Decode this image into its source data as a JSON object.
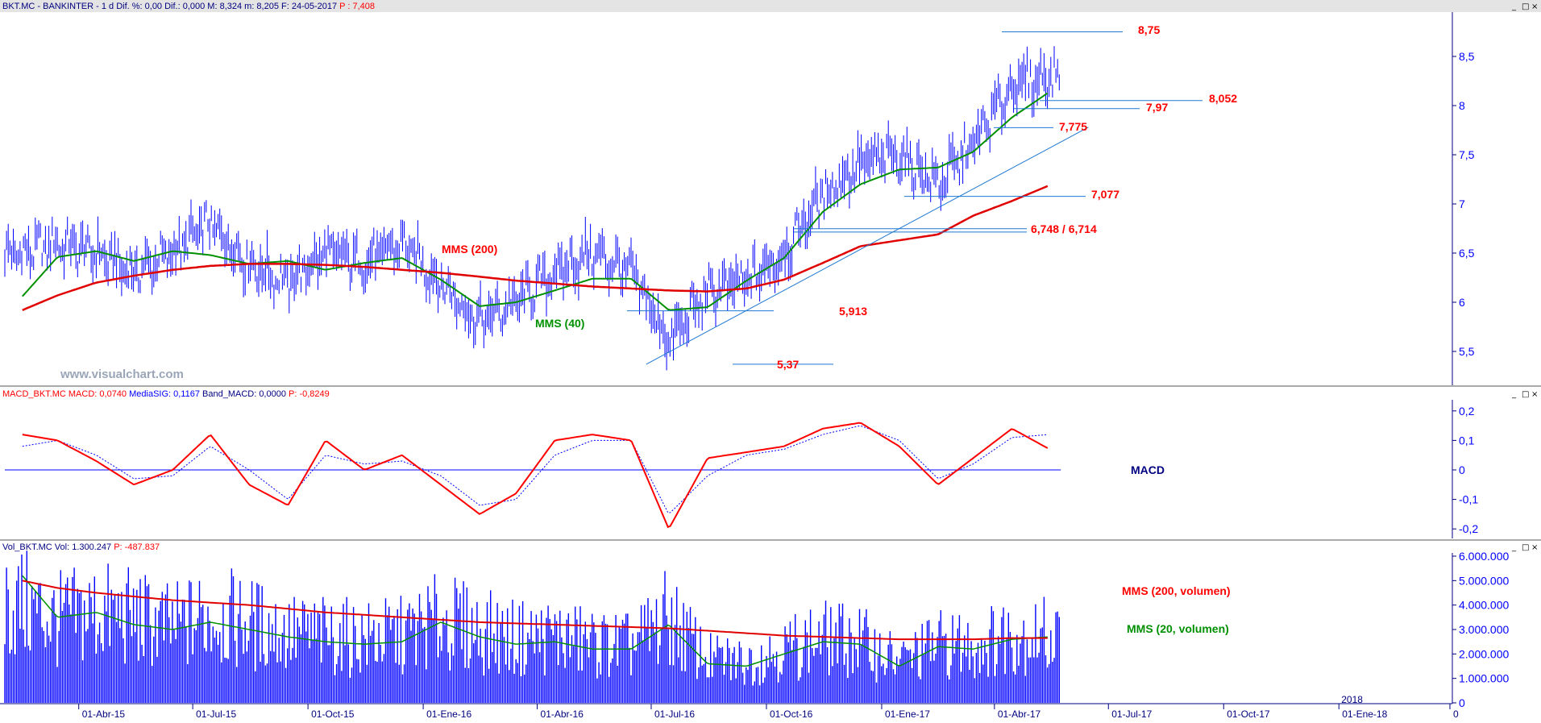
{
  "panels": {
    "price": {
      "header_parts": [
        {
          "text": "BKT.MC - BANKINTER - 1 d  Dif. %: 0,00  Dif.: 0,000  M: 8,324  m: 8,205  F: 24-05-2017",
          "color": "#000080"
        },
        {
          "text": "P : 7,408",
          "color": "#ff0000"
        }
      ],
      "y_ticks": [
        "8,5",
        "8",
        "7,5",
        "7",
        "6,5",
        "6",
        "5,5"
      ],
      "watermark": "www.visualchart.com"
    },
    "macd": {
      "header_parts": [
        {
          "text": "MACD_BKT.MC  MACD: 0,0740",
          "color": "#ff0000"
        },
        {
          "text": "MediaSIG: 0,1167",
          "color": "#0000ff"
        },
        {
          "text": "Band_MACD: 0,0000",
          "color": "#000080"
        },
        {
          "text": "P: -0,8249",
          "color": "#ff0000"
        }
      ],
      "y_ticks": [
        "0,2",
        "0,1",
        "0",
        "-0,1",
        "-0,2"
      ],
      "label": "MACD"
    },
    "volume": {
      "header_parts": [
        {
          "text": "Vol_BKT.MC  Vol: 1.300.247",
          "color": "#000080"
        },
        {
          "text": "P: -487.837",
          "color": "#ff0000"
        }
      ],
      "y_ticks": [
        "6.000.000",
        "5.000.000",
        "4.000.000",
        "3.000.000",
        "2.000.000",
        "1.000.000",
        "0"
      ]
    }
  },
  "x_ticks": [
    "01-Abr-15",
    "01-Jul-15",
    "01-Oct-15",
    "01-Ene-16",
    "01-Abr-16",
    "01-Jul-16",
    "01-Oct-16",
    "01-Ene-17",
    "01-Abr-17",
    "01-Jul-17",
    "01-Oct-17",
    "01-Ene-18",
    "0"
  ],
  "x_year_marker": "2018",
  "window_buttons": [
    "_",
    "□",
    "×"
  ],
  "annotations": {
    "levels": [
      "8,75",
      "8,052",
      "7,97",
      "7,775",
      "7,077",
      "6,748 / 6,714",
      "5,913",
      "5,37"
    ],
    "mms200": "MMS (200)",
    "mms40": "MMS (40)",
    "vol200": "MMS (200, volumen)",
    "vol20": "MMS (20, volumen)"
  },
  "colors": {
    "price_bars": "#0000ff",
    "mms200": "#e00000",
    "mms40": "#009000",
    "support_lines": "#1e78d2",
    "macd_line": "#ff0000",
    "signal_line": "#0000ff",
    "volume_bars": "#0000ff",
    "axis_text": "#0000ff",
    "annotation_red": "#ff0000",
    "annotation_green": "#009000",
    "annotation_navy": "#000080"
  },
  "chart_data": [
    {
      "type": "line",
      "panel": "price",
      "series": [
        {
          "name": "BKT.MC",
          "x": [
            "2015-02",
            "2015-03",
            "2015-04",
            "2015-05",
            "2015-06",
            "2015-07",
            "2015-08",
            "2015-09",
            "2015-10",
            "2015-11",
            "2015-12",
            "2016-01",
            "2016-02",
            "2016-03",
            "2016-04",
            "2016-05",
            "2016-06",
            "2016-07",
            "2016-08",
            "2016-09",
            "2016-10",
            "2016-11",
            "2016-12",
            "2017-01",
            "2017-02",
            "2017-03",
            "2017-04",
            "2017-05"
          ],
          "values": [
            6.5,
            6.6,
            6.5,
            6.3,
            6.5,
            6.8,
            6.4,
            6.2,
            6.5,
            6.4,
            6.6,
            6.2,
            5.8,
            6.0,
            6.3,
            6.5,
            6.3,
            5.6,
            6.1,
            6.2,
            6.5,
            7.1,
            7.4,
            7.5,
            7.2,
            7.6,
            8.2,
            8.3
          ]
        },
        {
          "name": "MMS (40)",
          "x": [
            "2015-02",
            "2015-03",
            "2015-04",
            "2015-05",
            "2015-06",
            "2015-07",
            "2015-08",
            "2015-09",
            "2015-10",
            "2015-11",
            "2015-12",
            "2016-01",
            "2016-02",
            "2016-03",
            "2016-04",
            "2016-05",
            "2016-06",
            "2016-07",
            "2016-08",
            "2016-09",
            "2016-10",
            "2016-11",
            "2016-12",
            "2017-01",
            "2017-02",
            "2017-03",
            "2017-04",
            "2017-05"
          ],
          "values": [
            6.06,
            6.46,
            6.52,
            6.42,
            6.52,
            6.48,
            6.39,
            6.42,
            6.33,
            6.4,
            6.45,
            6.23,
            5.96,
            6.0,
            6.12,
            6.24,
            6.24,
            5.92,
            5.95,
            6.22,
            6.45,
            6.92,
            7.2,
            7.35,
            7.37,
            7.53,
            7.88,
            8.14
          ]
        },
        {
          "name": "MMS (200)",
          "x": [
            "2015-02",
            "2015-03",
            "2015-04",
            "2015-05",
            "2015-06",
            "2015-07",
            "2015-08",
            "2015-09",
            "2015-10",
            "2015-11",
            "2015-12",
            "2016-01",
            "2016-02",
            "2016-03",
            "2016-04",
            "2016-05",
            "2016-06",
            "2016-07",
            "2016-08",
            "2016-09",
            "2016-10",
            "2016-11",
            "2016-12",
            "2017-01",
            "2017-02",
            "2017-03",
            "2017-04",
            "2017-05"
          ],
          "values": [
            5.92,
            6.07,
            6.2,
            6.27,
            6.33,
            6.37,
            6.39,
            6.39,
            6.38,
            6.36,
            6.33,
            6.3,
            6.26,
            6.22,
            6.19,
            6.16,
            6.14,
            6.12,
            6.11,
            6.14,
            6.23,
            6.4,
            6.57,
            6.63,
            6.69,
            6.88,
            7.03,
            7.19
          ]
        }
      ],
      "levels": [
        8.75,
        8.052,
        7.97,
        7.775,
        7.077,
        6.748,
        6.714,
        5.913,
        5.37
      ],
      "trendline": {
        "from": [
          "2016-06-27",
          5.37
        ],
        "to": [
          "2017-06-15",
          7.78
        ]
      },
      "ylim": [
        5.2,
        8.95
      ]
    },
    {
      "type": "line",
      "panel": "macd",
      "series": [
        {
          "name": "MACD",
          "x": [
            "2015-02",
            "2015-03",
            "2015-04",
            "2015-05",
            "2015-06",
            "2015-07",
            "2015-08",
            "2015-09",
            "2015-10",
            "2015-11",
            "2015-12",
            "2016-01",
            "2016-02",
            "2016-03",
            "2016-04",
            "2016-05",
            "2016-06",
            "2016-07",
            "2016-08",
            "2016-09",
            "2016-10",
            "2016-11",
            "2016-12",
            "2017-01",
            "2017-02",
            "2017-03",
            "2017-04",
            "2017-05"
          ],
          "values": [
            0.12,
            0.1,
            0.03,
            -0.05,
            0.0,
            0.12,
            -0.05,
            -0.12,
            0.1,
            0.0,
            0.05,
            -0.05,
            -0.15,
            -0.08,
            0.1,
            0.12,
            0.1,
            -0.2,
            0.04,
            0.06,
            0.08,
            0.14,
            0.16,
            0.08,
            -0.05,
            0.04,
            0.14,
            0.07
          ]
        },
        {
          "name": "MediaSIG",
          "x": [
            "2015-02",
            "2015-03",
            "2015-04",
            "2015-05",
            "2015-06",
            "2015-07",
            "2015-08",
            "2015-09",
            "2015-10",
            "2015-11",
            "2015-12",
            "2016-01",
            "2016-02",
            "2016-03",
            "2016-04",
            "2016-05",
            "2016-06",
            "2016-07",
            "2016-08",
            "2016-09",
            "2016-10",
            "2016-11",
            "2016-12",
            "2017-01",
            "2017-02",
            "2017-03",
            "2017-04",
            "2017-05"
          ],
          "values": [
            0.08,
            0.1,
            0.05,
            -0.03,
            -0.02,
            0.08,
            0.0,
            -0.1,
            0.05,
            0.02,
            0.03,
            -0.02,
            -0.12,
            -0.1,
            0.05,
            0.1,
            0.1,
            -0.15,
            -0.02,
            0.05,
            0.07,
            0.12,
            0.15,
            0.1,
            -0.03,
            0.02,
            0.11,
            0.12
          ]
        }
      ],
      "ylim": [
        -0.24,
        0.24
      ]
    },
    {
      "type": "bar",
      "panel": "volume",
      "series": [
        {
          "name": "Vol",
          "x": [
            "2015-02",
            "2015-03",
            "2015-04",
            "2015-05",
            "2015-06",
            "2015-07",
            "2015-08",
            "2015-09",
            "2015-10",
            "2015-11",
            "2015-12",
            "2016-01",
            "2016-02",
            "2016-03",
            "2016-04",
            "2016-05",
            "2016-06",
            "2016-07",
            "2016-08",
            "2016-09",
            "2016-10",
            "2016-11",
            "2016-12",
            "2017-01",
            "2017-02",
            "2017-03",
            "2017-04",
            "2017-05"
          ],
          "values": [
            3800000,
            3200000,
            3500000,
            3300000,
            2900000,
            3400000,
            3100000,
            2700000,
            2600000,
            2500000,
            2600000,
            3200000,
            2800000,
            2500000,
            2600000,
            2300000,
            2200000,
            3300000,
            1700000,
            1600000,
            2100000,
            2500000,
            2400000,
            1600000,
            2300000,
            2200000,
            2700000,
            2600000
          ]
        },
        {
          "name": "MMS (20, volumen)",
          "x": [
            "2015-02",
            "2015-03",
            "2015-04",
            "2015-05",
            "2015-06",
            "2015-07",
            "2015-08",
            "2015-09",
            "2015-10",
            "2015-11",
            "2015-12",
            "2016-01",
            "2016-02",
            "2016-03",
            "2016-04",
            "2016-05",
            "2016-06",
            "2016-07",
            "2016-08",
            "2016-09",
            "2016-10",
            "2016-11",
            "2016-12",
            "2017-01",
            "2017-02",
            "2017-03",
            "2017-04",
            "2017-05"
          ],
          "values": [
            5200000,
            3500000,
            3700000,
            3200000,
            3000000,
            3300000,
            3000000,
            2700000,
            2500000,
            2400000,
            2500000,
            3300000,
            2700000,
            2400000,
            2500000,
            2200000,
            2200000,
            3200000,
            1600000,
            1500000,
            2000000,
            2500000,
            2400000,
            1500000,
            2300000,
            2200000,
            2600000,
            2700000
          ]
        },
        {
          "name": "MMS (200, volumen)",
          "x": [
            "2015-02",
            "2015-03",
            "2015-04",
            "2015-05",
            "2015-06",
            "2015-07",
            "2015-08",
            "2015-09",
            "2015-10",
            "2015-11",
            "2015-12",
            "2016-01",
            "2016-02",
            "2016-03",
            "2016-04",
            "2016-05",
            "2016-06",
            "2016-07",
            "2016-08",
            "2016-09",
            "2016-10",
            "2016-11",
            "2016-12",
            "2017-01",
            "2017-02",
            "2017-03",
            "2017-04",
            "2017-05"
          ],
          "values": [
            5000000,
            4700000,
            4500000,
            4350000,
            4200000,
            4100000,
            4000000,
            3850000,
            3700000,
            3600000,
            3500000,
            3400000,
            3300000,
            3250000,
            3200000,
            3150000,
            3100000,
            3050000,
            2950000,
            2850000,
            2750000,
            2700000,
            2650000,
            2600000,
            2600000,
            2600000,
            2650000,
            2650000
          ]
        }
      ],
      "ylim": [
        0,
        6200000
      ]
    }
  ]
}
